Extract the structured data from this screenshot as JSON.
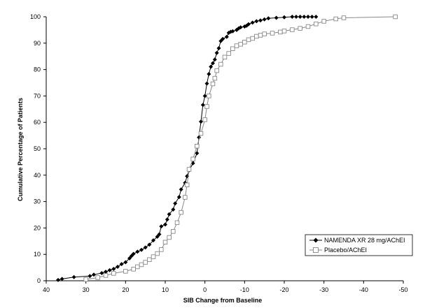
{
  "chart_data": {
    "type": "line",
    "title": "",
    "xlabel": "SIB Change from Baseline",
    "ylabel": "Cumulative Percentage of Patients",
    "xlim": [
      40,
      -50
    ],
    "ylim": [
      0,
      100
    ],
    "x_ticks": [
      "40",
      "30",
      "20",
      "10",
      "0",
      "-10",
      "-20",
      "-30",
      "-40",
      "-50"
    ],
    "y_ticks": [
      "0",
      "10",
      "20",
      "30",
      "40",
      "50",
      "60",
      "70",
      "80",
      "90",
      "100"
    ],
    "grid": false,
    "legend_position": "bottom-right",
    "series": [
      {
        "name": "NAMENDA XR 28 mg/AChEI",
        "marker": "filled-diamond",
        "color": "#000000",
        "x": [
          37,
          36,
          33,
          29,
          28,
          26,
          25,
          24,
          23,
          22,
          21,
          20,
          19,
          18.5,
          18,
          17,
          16,
          15,
          14,
          13,
          12,
          11.5,
          11,
          10,
          9.5,
          9,
          8,
          7.5,
          6.5,
          6,
          5,
          4.5,
          4,
          3,
          2,
          1.5,
          1,
          0.5,
          0,
          -0.5,
          -1,
          -1.5,
          -2,
          -2.5,
          -3,
          -3.5,
          -4,
          -4.5,
          -5.5,
          -6,
          -6.5,
          -7,
          -8,
          -8.5,
          -9,
          -10,
          -10.5,
          -11,
          -12,
          -13,
          -14,
          -15,
          -16,
          -18,
          -20,
          -22,
          -23,
          -24,
          -25,
          -26,
          -27,
          -28
        ],
        "y": [
          0.3,
          0.7,
          1.4,
          1.8,
          2.3,
          2.9,
          3.4,
          4.0,
          4.5,
          5.3,
          6.3,
          7.0,
          8.5,
          9.4,
          10.2,
          11.0,
          11.7,
          12.6,
          13.7,
          15.3,
          16.7,
          17.6,
          20.6,
          21.3,
          23.2,
          25.2,
          27.0,
          29.3,
          31.7,
          34.6,
          37.1,
          39.6,
          41.8,
          44.5,
          48.3,
          54.3,
          60.3,
          66.6,
          70.0,
          74.7,
          78.3,
          81.1,
          82.4,
          83.8,
          86.3,
          88.1,
          90.8,
          91.6,
          92.4,
          93.9,
          94.3,
          94.5,
          95.0,
          95.6,
          96.0,
          96.3,
          96.6,
          97.2,
          97.8,
          98.3,
          98.6,
          99.0,
          99.4,
          99.6,
          99.8,
          100,
          100,
          100,
          100,
          100,
          100,
          100
        ]
      },
      {
        "name": "Placebo/AChEI",
        "marker": "open-square",
        "color": "#888888",
        "x": [
          30,
          27,
          25,
          23,
          20,
          18,
          17,
          16,
          15,
          14,
          13,
          12,
          11,
          10,
          9,
          8,
          7,
          6,
          5,
          4.5,
          4,
          3,
          2,
          1,
          0,
          -0.5,
          -1,
          -2,
          -2.5,
          -3,
          -4,
          -5,
          -6,
          -7,
          -8,
          -9,
          -10,
          -11,
          -12,
          -13,
          -14,
          -15,
          -17,
          -19,
          -20,
          -22,
          -24,
          -26,
          -28,
          -30,
          -33,
          -35,
          -48
        ],
        "y": [
          0.5,
          1.2,
          2.0,
          2.8,
          3.6,
          4.4,
          5.3,
          6.1,
          7.0,
          8.0,
          9.1,
          10.3,
          11.8,
          14.6,
          16.4,
          18.7,
          22.0,
          25.9,
          31.6,
          36.3,
          42.2,
          46.1,
          51.0,
          55.8,
          61.0,
          66.0,
          70.0,
          74.6,
          76.7,
          79.6,
          82.0,
          84.7,
          86.1,
          87.9,
          89.0,
          89.6,
          90.4,
          91.3,
          91.8,
          92.6,
          93.0,
          93.5,
          93.8,
          94.2,
          94.6,
          95.1,
          95.6,
          96.3,
          97.3,
          98.3,
          99.2,
          99.6,
          100
        ]
      }
    ]
  }
}
